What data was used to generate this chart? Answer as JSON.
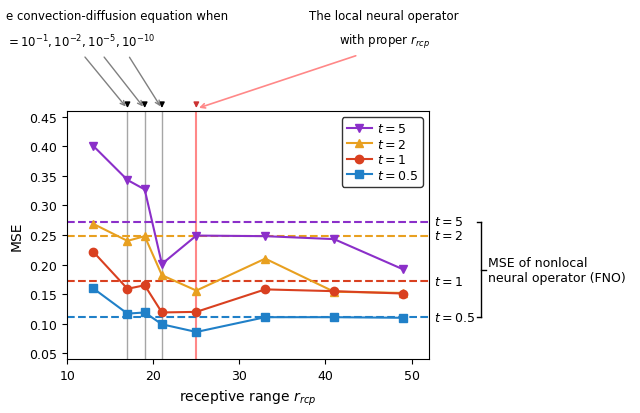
{
  "x": [
    13,
    17,
    19,
    21,
    25,
    33,
    41,
    49
  ],
  "t5_y": [
    0.401,
    0.343,
    0.327,
    0.201,
    0.249,
    0.248,
    0.243,
    0.192
  ],
  "t2_y": [
    0.269,
    0.24,
    0.248,
    0.182,
    0.156,
    0.21,
    0.154,
    0.152
  ],
  "t1_y": [
    0.222,
    0.159,
    0.165,
    0.119,
    0.12,
    0.158,
    0.155,
    0.151
  ],
  "t05_y": [
    0.16,
    0.117,
    0.119,
    0.099,
    0.086,
    0.111,
    0.111,
    0.11
  ],
  "fno_t5": 0.272,
  "fno_t2": 0.249,
  "fno_t1": 0.172,
  "fno_t05": 0.111,
  "color_t5": "#8B2FC9",
  "color_t2": "#E8A020",
  "color_t1": "#D94020",
  "color_t05": "#2080C8",
  "vlines_gray": [
    17,
    19,
    21
  ],
  "vline_red": 25,
  "xlim": [
    10,
    52
  ],
  "ylim": [
    0.04,
    0.46
  ],
  "xlabel": "receptive range $r_{rcp}$",
  "ylabel": "MSE",
  "fno_label": "MSE of nonlocal\nneural operator (FNO)",
  "ann_left_line1": "e convection-diffusion equation when",
  "ann_left_line2": "$= 10^{-1}, 10^{-2}, 10^{-5}, 10^{-10}$",
  "ann_right_line1": "The local neural operator",
  "ann_right_line2": "with proper $r_{rcp}$"
}
